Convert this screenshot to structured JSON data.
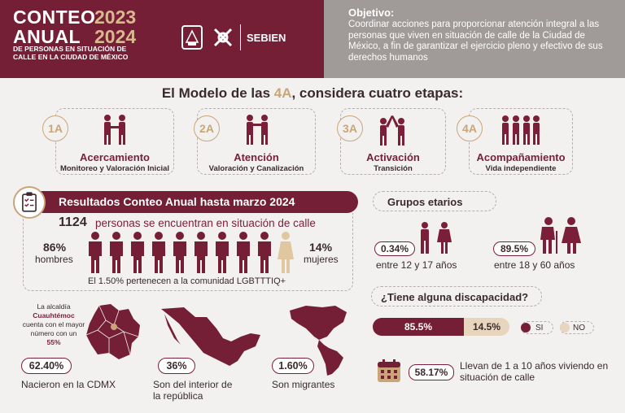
{
  "header": {
    "conteo": "CONTEO",
    "anual": "ANUAL",
    "year1": "2023",
    "year2": "2024",
    "subtitle_1": "DE PERSONAS EN SITUACIÓN DE",
    "subtitle_2": "CALLE EN LA CIUDAD DE MÉXICO",
    "sebien": "SEBIEN",
    "objective_title": "Objetivo:",
    "objective_text": "Coordinar acciones para proporcionar atención integral a las personas que viven en situación de calle de la Ciudad de México, a fin de garantizar el ejercicio pleno y efectivo de sus derechos humanos"
  },
  "model": {
    "title_a": "El Modelo de las ",
    "title_b": "4A",
    "title_c": ", considera cuatro etapas:",
    "stages": [
      {
        "badge": "1A",
        "title": "Acercamiento",
        "subtitle": "Monitoreo y Valoración Inicial"
      },
      {
        "badge": "2A",
        "title": "Atención",
        "subtitle": "Valoración y Canalización"
      },
      {
        "badge": "3A",
        "title": "Activación",
        "subtitle": "Transición"
      },
      {
        "badge": "4A",
        "title": "Acompañamiento",
        "subtitle": "Vida independiente"
      }
    ]
  },
  "results": {
    "title": "Resultados Conteo Anual hasta marzo 2024",
    "total": "1124",
    "total_text": "personas se encuentran en situación de calle",
    "men_pct": "86%",
    "men_label": "hombres",
    "women_pct": "14%",
    "women_label": "mujeres",
    "men_share": 0.86,
    "lgbt_text": "El 1.50% pertenecen a la comunidad LGBTTTIQ+"
  },
  "groups": {
    "title": "Grupos etarios",
    "young_pct": "0.34%",
    "young_label": "entre 12 y 17 años",
    "adult_pct": "89.5%",
    "adult_label": "entre 18 y 60 años"
  },
  "disability": {
    "title": "¿Tiene alguna discapacidad?",
    "yes_pct": "85.5%",
    "no_pct": "14.5%",
    "yes_label": "SI",
    "no_label": "NO"
  },
  "years": {
    "pct": "58.17%",
    "text": "Llevan de 1 a 10 años viviendo en situación de calle"
  },
  "origin": {
    "alcaldia_1": "La alcaldía",
    "alcaldia_2": "Cuauhtémoc",
    "alcaldia_3": "cuenta con el mayor número con un",
    "alcaldia_4": "55%",
    "cdmx_pct": "62.40%",
    "cdmx_label": "Nacieron en la CDMX",
    "interior_pct": "36%",
    "interior_label": "Son del interior de la república",
    "migrant_pct": "1.60%",
    "migrant_label": "Son migrantes"
  },
  "colors": {
    "maroon": "#741f36",
    "gold": "#c9a578",
    "grey": "#a09a99",
    "beige": "#e7d5bd"
  }
}
